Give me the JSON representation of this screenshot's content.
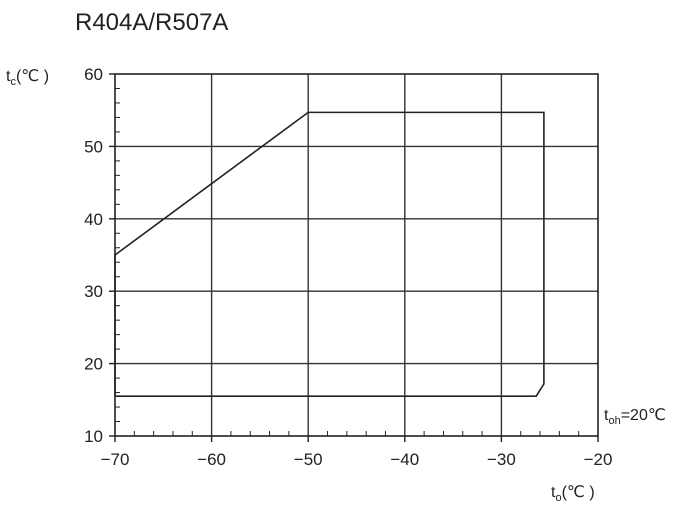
{
  "chart_data": {
    "type": "line",
    "title": "R404A/R507A",
    "xlabel": "t",
    "xlabel_sub": "o",
    "xlabel_unit": "(℃ )",
    "ylabel": "t",
    "ylabel_sub": "c",
    "ylabel_unit": "(℃ )",
    "xlim": [
      -70,
      -20
    ],
    "ylim": [
      10,
      60
    ],
    "xticks": [
      -70,
      -60,
      -50,
      -40,
      -30,
      -20
    ],
    "yticks": [
      10,
      20,
      30,
      40,
      50,
      60
    ],
    "xticklabels": [
      "−70",
      "−60",
      "−50",
      "−40",
      "−30",
      "−20"
    ],
    "yticklabels": [
      "10",
      "20",
      "30",
      "40",
      "50",
      "60"
    ],
    "grid": true,
    "annotation": {
      "text": "t",
      "sub": "oh",
      "rest": "=20℃"
    },
    "series": [
      {
        "x": [
          -70,
          -70,
          -50,
          -25.6,
          -25.6,
          -26.4,
          -70
        ],
        "y": [
          15.5,
          35,
          54.7,
          54.7,
          17.2,
          15.5,
          15.5
        ]
      }
    ],
    "colors": {
      "line": "#222222",
      "grid": "#333333",
      "axis": "#222222",
      "text": "#222222"
    }
  }
}
